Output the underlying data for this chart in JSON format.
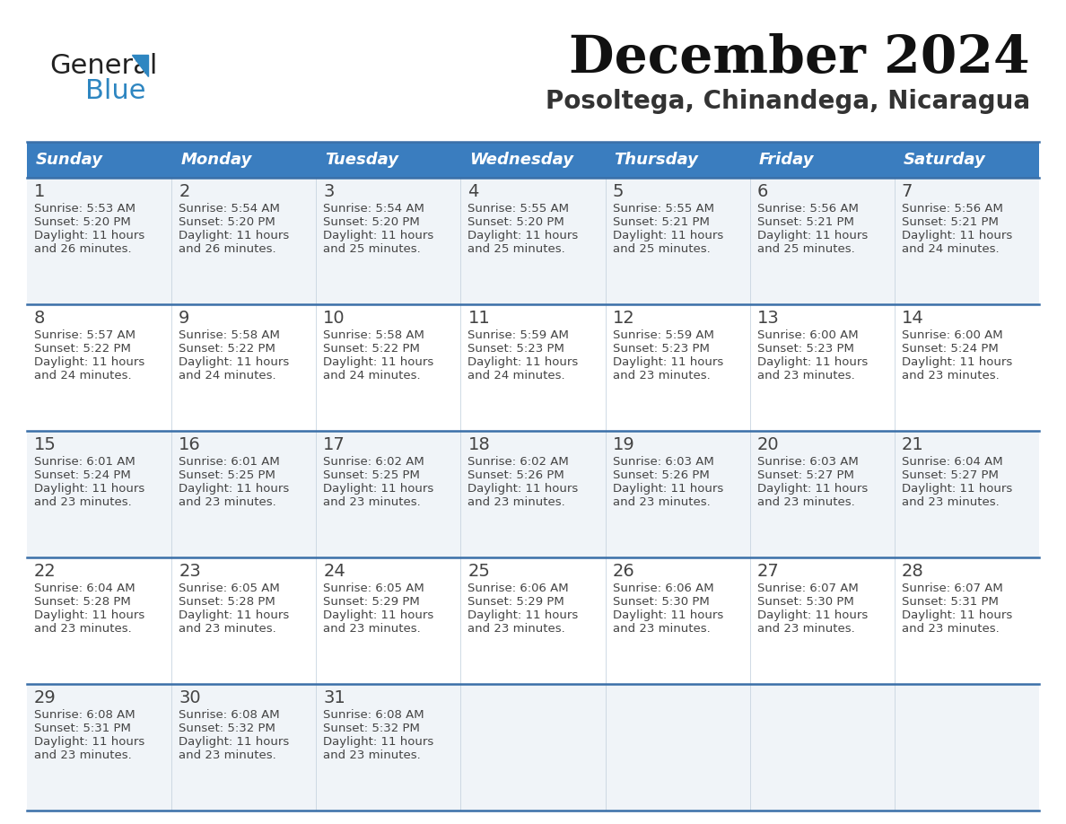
{
  "title": "December 2024",
  "subtitle": "Posoltega, Chinandega, Nicaragua",
  "header_color": "#3a7dbf",
  "header_text_color": "#ffffff",
  "day_names": [
    "Sunday",
    "Monday",
    "Tuesday",
    "Wednesday",
    "Thursday",
    "Friday",
    "Saturday"
  ],
  "background_color": "#ffffff",
  "cell_bg_odd": "#f0f4f8",
  "cell_bg_even": "#ffffff",
  "row_line_color": "#3a6fa8",
  "text_color": "#444444",
  "days": [
    {
      "day": 1,
      "col": 0,
      "row": 0,
      "sunrise": "5:53 AM",
      "sunset": "5:20 PM",
      "daylight_min": "26 minutes."
    },
    {
      "day": 2,
      "col": 1,
      "row": 0,
      "sunrise": "5:54 AM",
      "sunset": "5:20 PM",
      "daylight_min": "26 minutes."
    },
    {
      "day": 3,
      "col": 2,
      "row": 0,
      "sunrise": "5:54 AM",
      "sunset": "5:20 PM",
      "daylight_min": "25 minutes."
    },
    {
      "day": 4,
      "col": 3,
      "row": 0,
      "sunrise": "5:55 AM",
      "sunset": "5:20 PM",
      "daylight_min": "25 minutes."
    },
    {
      "day": 5,
      "col": 4,
      "row": 0,
      "sunrise": "5:55 AM",
      "sunset": "5:21 PM",
      "daylight_min": "25 minutes."
    },
    {
      "day": 6,
      "col": 5,
      "row": 0,
      "sunrise": "5:56 AM",
      "sunset": "5:21 PM",
      "daylight_min": "25 minutes."
    },
    {
      "day": 7,
      "col": 6,
      "row": 0,
      "sunrise": "5:56 AM",
      "sunset": "5:21 PM",
      "daylight_min": "24 minutes."
    },
    {
      "day": 8,
      "col": 0,
      "row": 1,
      "sunrise": "5:57 AM",
      "sunset": "5:22 PM",
      "daylight_min": "24 minutes."
    },
    {
      "day": 9,
      "col": 1,
      "row": 1,
      "sunrise": "5:58 AM",
      "sunset": "5:22 PM",
      "daylight_min": "24 minutes."
    },
    {
      "day": 10,
      "col": 2,
      "row": 1,
      "sunrise": "5:58 AM",
      "sunset": "5:22 PM",
      "daylight_min": "24 minutes."
    },
    {
      "day": 11,
      "col": 3,
      "row": 1,
      "sunrise": "5:59 AM",
      "sunset": "5:23 PM",
      "daylight_min": "24 minutes."
    },
    {
      "day": 12,
      "col": 4,
      "row": 1,
      "sunrise": "5:59 AM",
      "sunset": "5:23 PM",
      "daylight_min": "23 minutes."
    },
    {
      "day": 13,
      "col": 5,
      "row": 1,
      "sunrise": "6:00 AM",
      "sunset": "5:23 PM",
      "daylight_min": "23 minutes."
    },
    {
      "day": 14,
      "col": 6,
      "row": 1,
      "sunrise": "6:00 AM",
      "sunset": "5:24 PM",
      "daylight_min": "23 minutes."
    },
    {
      "day": 15,
      "col": 0,
      "row": 2,
      "sunrise": "6:01 AM",
      "sunset": "5:24 PM",
      "daylight_min": "23 minutes."
    },
    {
      "day": 16,
      "col": 1,
      "row": 2,
      "sunrise": "6:01 AM",
      "sunset": "5:25 PM",
      "daylight_min": "23 minutes."
    },
    {
      "day": 17,
      "col": 2,
      "row": 2,
      "sunrise": "6:02 AM",
      "sunset": "5:25 PM",
      "daylight_min": "23 minutes."
    },
    {
      "day": 18,
      "col": 3,
      "row": 2,
      "sunrise": "6:02 AM",
      "sunset": "5:26 PM",
      "daylight_min": "23 minutes."
    },
    {
      "day": 19,
      "col": 4,
      "row": 2,
      "sunrise": "6:03 AM",
      "sunset": "5:26 PM",
      "daylight_min": "23 minutes."
    },
    {
      "day": 20,
      "col": 5,
      "row": 2,
      "sunrise": "6:03 AM",
      "sunset": "5:27 PM",
      "daylight_min": "23 minutes."
    },
    {
      "day": 21,
      "col": 6,
      "row": 2,
      "sunrise": "6:04 AM",
      "sunset": "5:27 PM",
      "daylight_min": "23 minutes."
    },
    {
      "day": 22,
      "col": 0,
      "row": 3,
      "sunrise": "6:04 AM",
      "sunset": "5:28 PM",
      "daylight_min": "23 minutes."
    },
    {
      "day": 23,
      "col": 1,
      "row": 3,
      "sunrise": "6:05 AM",
      "sunset": "5:28 PM",
      "daylight_min": "23 minutes."
    },
    {
      "day": 24,
      "col": 2,
      "row": 3,
      "sunrise": "6:05 AM",
      "sunset": "5:29 PM",
      "daylight_min": "23 minutes."
    },
    {
      "day": 25,
      "col": 3,
      "row": 3,
      "sunrise": "6:06 AM",
      "sunset": "5:29 PM",
      "daylight_min": "23 minutes."
    },
    {
      "day": 26,
      "col": 4,
      "row": 3,
      "sunrise": "6:06 AM",
      "sunset": "5:30 PM",
      "daylight_min": "23 minutes."
    },
    {
      "day": 27,
      "col": 5,
      "row": 3,
      "sunrise": "6:07 AM",
      "sunset": "5:30 PM",
      "daylight_min": "23 minutes."
    },
    {
      "day": 28,
      "col": 6,
      "row": 3,
      "sunrise": "6:07 AM",
      "sunset": "5:31 PM",
      "daylight_min": "23 minutes."
    },
    {
      "day": 29,
      "col": 0,
      "row": 4,
      "sunrise": "6:08 AM",
      "sunset": "5:31 PM",
      "daylight_min": "23 minutes."
    },
    {
      "day": 30,
      "col": 1,
      "row": 4,
      "sunrise": "6:08 AM",
      "sunset": "5:32 PM",
      "daylight_min": "23 minutes."
    },
    {
      "day": 31,
      "col": 2,
      "row": 4,
      "sunrise": "6:08 AM",
      "sunset": "5:32 PM",
      "daylight_min": "23 minutes."
    }
  ]
}
